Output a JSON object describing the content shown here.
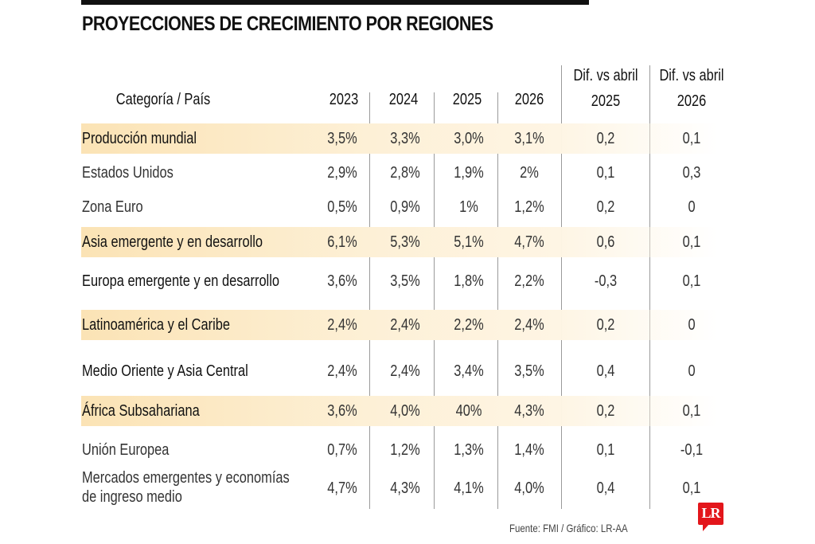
{
  "title": "PROYECCIONES DE CRECIMIENTO POR REGIONES",
  "headers": {
    "category": "Categoría / País",
    "y2023": "2023",
    "y2024": "2024",
    "y2025": "2025",
    "y2026": "2026",
    "dif2025_line1": "Dif. vs abril",
    "dif2025_line2": "2025",
    "dif2026_line1": "Dif. vs abril",
    "dif2026_line2": "2026"
  },
  "rows": [
    {
      "label": "Producción mundial",
      "highlight": true,
      "bold": true,
      "values": [
        "3,5%",
        "3,3%",
        "3,0%",
        "3,1%",
        "0,2",
        "0,1"
      ]
    },
    {
      "label": "Estados Unidos",
      "highlight": false,
      "bold": false,
      "values": [
        "2,9%",
        "2,8%",
        "1,9%",
        "2%",
        "0,1",
        "0,3"
      ]
    },
    {
      "label": "Zona Euro",
      "highlight": false,
      "bold": false,
      "values": [
        "0,5%",
        "0,9%",
        "1%",
        "1,2%",
        "0,2",
        "0"
      ]
    },
    {
      "label": "Asia emergente y en desarrollo",
      "highlight": true,
      "bold": true,
      "values": [
        "6,1%",
        "5,3%",
        "5,1%",
        "4,7%",
        "0,6",
        "0,1"
      ]
    },
    {
      "label": "Europa emergente y en desarrollo",
      "highlight": false,
      "bold": true,
      "values": [
        "3,6%",
        "3,5%",
        "1,8%",
        "2,2%",
        "-0,3",
        "0,1"
      ]
    },
    {
      "label": "Latinoamérica y el Caribe",
      "highlight": true,
      "bold": true,
      "values": [
        "2,4%",
        "2,4%",
        "2,2%",
        "2,4%",
        "0,2",
        "0"
      ]
    },
    {
      "label": "Medio Oriente y Asia Central",
      "highlight": false,
      "bold": true,
      "values": [
        "2,4%",
        "2,4%",
        "3,4%",
        "3,5%",
        "0,4",
        "0"
      ]
    },
    {
      "label": "África Subsahariana",
      "highlight": true,
      "bold": true,
      "values": [
        "3,6%",
        "4,0%",
        "40%",
        "4,3%",
        "0,2",
        "0,1"
      ]
    },
    {
      "label": "Unión Europea",
      "highlight": false,
      "bold": false,
      "values": [
        "0,7%",
        "1,2%",
        "1,3%",
        "1,4%",
        "0,1",
        "-0,1"
      ]
    },
    {
      "label": "Mercados emergentes y economías",
      "label2": "de ingreso medio",
      "highlight": false,
      "bold": false,
      "values": [
        "4,7%",
        "4,3%",
        "4,1%",
        "4,0%",
        "0,4",
        "0,1"
      ]
    }
  ],
  "footer": "Fuente: FMI / Gráfico: LR-AA",
  "logo": {
    "text": "LR",
    "color": "#e3161b"
  },
  "colors": {
    "highlight": "#fbe3b5",
    "divider": "#9a9a9a"
  },
  "chart_data": {
    "type": "table",
    "title": "PROYECCIONES DE CRECIMIENTO POR REGIONES",
    "columns": [
      "Categoría / País",
      "2023",
      "2024",
      "2025",
      "2026",
      "Dif. vs abril 2025",
      "Dif. vs abril 2026"
    ],
    "rows": [
      [
        "Producción mundial",
        "3,5%",
        "3,3%",
        "3,0%",
        "3,1%",
        "0,2",
        "0,1"
      ],
      [
        "Estados Unidos",
        "2,9%",
        "2,8%",
        "1,9%",
        "2%",
        "0,1",
        "0,3"
      ],
      [
        "Zona Euro",
        "0,5%",
        "0,9%",
        "1%",
        "1,2%",
        "0,2",
        "0"
      ],
      [
        "Asia emergente y en desarrollo",
        "6,1%",
        "5,3%",
        "5,1%",
        "4,7%",
        "0,6",
        "0,1"
      ],
      [
        "Europa emergente y en desarrollo",
        "3,6%",
        "3,5%",
        "1,8%",
        "2,2%",
        "-0,3",
        "0,1"
      ],
      [
        "Latinoamérica y el Caribe",
        "2,4%",
        "2,4%",
        "2,2%",
        "2,4%",
        "0,2",
        "0"
      ],
      [
        "Medio Oriente y Asia Central",
        "2,4%",
        "2,4%",
        "3,4%",
        "3,5%",
        "0,4",
        "0"
      ],
      [
        "África Subsahariana",
        "3,6%",
        "4,0%",
        "40%",
        "4,3%",
        "0,2",
        "0,1"
      ],
      [
        "Unión Europea",
        "0,7%",
        "1,2%",
        "1,3%",
        "1,4%",
        "0,1",
        "-0,1"
      ],
      [
        "Mercados emergentes y economías de ingreso medio",
        "4,7%",
        "4,3%",
        "4,1%",
        "4,0%",
        "0,4",
        "0,1"
      ]
    ],
    "source": "Fuente: FMI / Gráfico: LR-AA"
  }
}
